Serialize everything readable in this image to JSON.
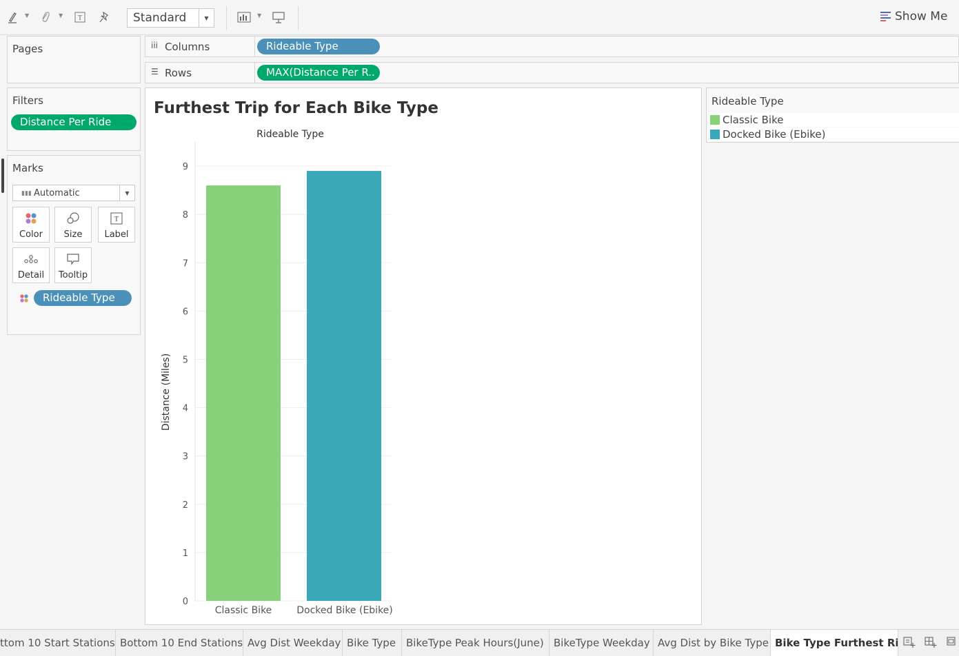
{
  "toolbar": {
    "fit_value": "Standard",
    "show_me_label": "Show Me",
    "show_me_colors": [
      "#4a6fa5",
      "#e35d6a",
      "#b085c9"
    ],
    "icons": [
      "highlighter-icon",
      "paperclip-icon",
      "text-box-icon",
      "pin-icon",
      "chart-type-icon",
      "presentation-icon"
    ]
  },
  "pages": {
    "title": "Pages"
  },
  "filters": {
    "title": "Filters",
    "pills": [
      {
        "label": "Distance Per Ride"
      }
    ]
  },
  "marks": {
    "title": "Marks",
    "mark_type": "Automatic",
    "buttons": [
      {
        "label": "Color",
        "icon": "color-icon"
      },
      {
        "label": "Size",
        "icon": "size-icon"
      },
      {
        "label": "Label",
        "icon": "label-icon"
      },
      {
        "label": "Detail",
        "icon": "detail-icon"
      },
      {
        "label": "Tooltip",
        "icon": "tooltip-icon"
      }
    ],
    "pills": [
      {
        "label": "Rideable Type",
        "icon": "color-icon"
      }
    ]
  },
  "shelves": {
    "columns": {
      "label": "Columns",
      "pill": "Rideable Type"
    },
    "rows": {
      "label": "Rows",
      "pill": "MAX(Distance Per R.."
    }
  },
  "legend": {
    "title": "Rideable Type",
    "items": [
      {
        "label": "Classic Bike",
        "color": "#86d17a"
      },
      {
        "label": "Docked Bike (Ebike)",
        "color": "#3aa8b8"
      }
    ]
  },
  "chart_data": {
    "type": "bar",
    "title": "Furthest Trip for Each Bike Type",
    "header": "Rideable Type",
    "categories": [
      "Classic Bike",
      "Docked Bike (Ebike)"
    ],
    "values": [
      8.6,
      8.9
    ],
    "colors": [
      "#86d17a",
      "#3aa8b8"
    ],
    "xlabel": "",
    "ylabel": "Distance (Miles)",
    "ylim": [
      0,
      9.5
    ],
    "yticks": [
      0,
      1,
      2,
      3,
      4,
      5,
      6,
      7,
      8,
      9
    ],
    "grid": true
  },
  "tabs": [
    {
      "label": "ttom 10 Start Stations",
      "active": false
    },
    {
      "label": "Bottom 10 End Stations",
      "active": false
    },
    {
      "label": "Avg Dist Weekday",
      "active": false
    },
    {
      "label": "Bike Type",
      "active": false
    },
    {
      "label": "BikeType Peak Hours(June)",
      "active": false
    },
    {
      "label": "BikeType Weekday",
      "active": false
    },
    {
      "label": "Avg Dist by Bike Type",
      "active": false
    },
    {
      "label": "Bike Type Furthest Ride",
      "active": true
    }
  ]
}
